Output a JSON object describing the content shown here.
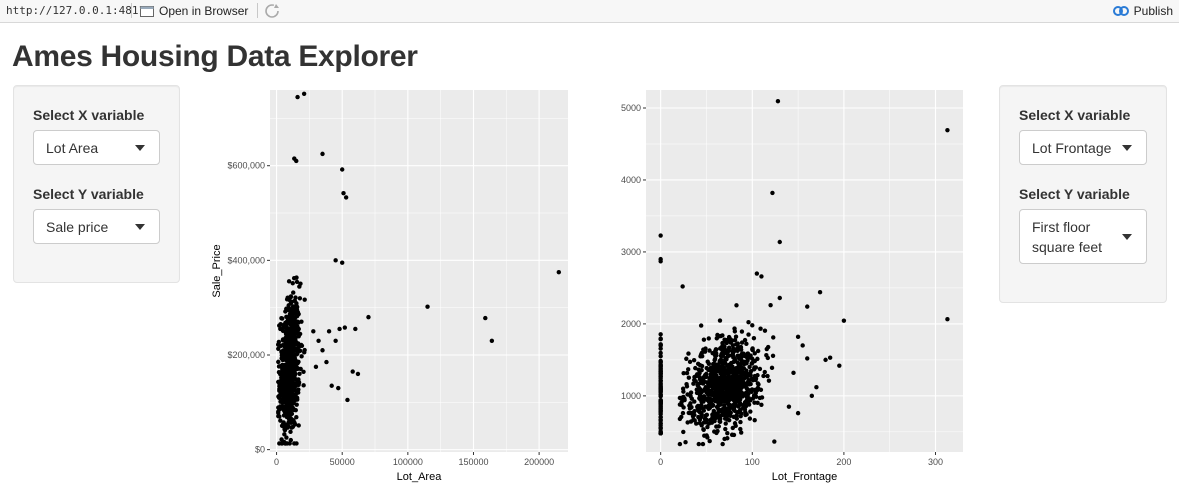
{
  "browser": {
    "url": "http://127.0.0.1:4811",
    "open_in_browser": "Open in Browser",
    "publish": "Publish"
  },
  "page": {
    "title": "Ames Housing Data Explorer"
  },
  "left_panel": {
    "x_label": "Select X variable",
    "x_value": "Lot Area",
    "y_label": "Select Y variable",
    "y_value": "Sale price"
  },
  "right_panel": {
    "x_label": "Select X variable",
    "x_value": "Lot Frontage",
    "y_label": "Select Y variable",
    "y_value": "First floor square feet"
  },
  "chart_data": [
    {
      "type": "scatter",
      "xlabel": "Lot_Area",
      "ylabel": "Sale_Price",
      "xlim": [
        -5000,
        222000
      ],
      "ylim": [
        -5000,
        760000
      ],
      "x_ticks": [
        0,
        50000,
        100000,
        150000,
        200000
      ],
      "x_tick_labels": [
        "0",
        "50000",
        "100000",
        "150000",
        "200000"
      ],
      "y_ticks": [
        0,
        200000,
        400000,
        600000
      ],
      "y_tick_labels": [
        "$0",
        "$200,000",
        "$400,000",
        "$600,000"
      ],
      "grid": true,
      "outliers": [
        [
          21000,
          752000
        ],
        [
          16000,
          745000
        ],
        [
          35000,
          625000
        ],
        [
          13500,
          615000
        ],
        [
          15000,
          610000
        ],
        [
          50000,
          592000
        ],
        [
          51000,
          542000
        ],
        [
          53000,
          533000
        ],
        [
          45000,
          400000
        ],
        [
          50000,
          395000
        ],
        [
          215000,
          375000
        ],
        [
          115000,
          302000
        ],
        [
          70000,
          280000
        ],
        [
          159000,
          278000
        ],
        [
          48000,
          255000
        ],
        [
          52000,
          258000
        ],
        [
          60000,
          255000
        ],
        [
          40000,
          250000
        ],
        [
          164000,
          230000
        ],
        [
          45000,
          230000
        ],
        [
          58000,
          165000
        ],
        [
          62000,
          160000
        ],
        [
          42000,
          135000
        ],
        [
          47000,
          130000
        ],
        [
          54000,
          105000
        ],
        [
          35000,
          210000
        ],
        [
          32000,
          230000
        ],
        [
          38000,
          185000
        ],
        [
          28000,
          250000
        ],
        [
          30000,
          175000
        ]
      ],
      "cluster": {
        "n": 700,
        "x_mean": 10000,
        "x_sd": 3800,
        "y_mean": 175000,
        "y_sd": 72000
      }
    },
    {
      "type": "scatter",
      "xlabel": "Lot_Frontage",
      "ylabel": "First_Flr_SF",
      "xlim": [
        -16,
        330
      ],
      "ylim": [
        220,
        5250
      ],
      "x_ticks": [
        0,
        100,
        200,
        300
      ],
      "x_tick_labels": [
        "0",
        "100",
        "200",
        "300"
      ],
      "y_ticks": [
        1000,
        2000,
        3000,
        4000,
        5000
      ],
      "y_tick_labels": [
        "1000",
        "2000",
        "3000",
        "4000",
        "5000"
      ],
      "grid": true,
      "outliers": [
        [
          128,
          5095
        ],
        [
          313,
          4692
        ],
        [
          122,
          3820
        ],
        [
          130,
          3138
        ],
        [
          0,
          3228
        ],
        [
          0,
          2900
        ],
        [
          313,
          2065
        ],
        [
          200,
          2045
        ],
        [
          174,
          2440
        ],
        [
          160,
          2240
        ],
        [
          195,
          1420
        ],
        [
          185,
          1530
        ],
        [
          180,
          1500
        ],
        [
          105,
          2700
        ],
        [
          110,
          2660
        ],
        [
          150,
          1820
        ],
        [
          155,
          1700
        ],
        [
          160,
          1520
        ],
        [
          24,
          2520
        ],
        [
          0,
          2870
        ],
        [
          130,
          2360
        ],
        [
          120,
          2260
        ],
        [
          150,
          760
        ],
        [
          140,
          850
        ],
        [
          165,
          1000
        ],
        [
          170,
          1120
        ],
        [
          145,
          1320
        ],
        [
          100,
          1980
        ]
      ],
      "cluster": {
        "n": 900,
        "x_mean": 70,
        "x_sd": 20,
        "y_mean": 1150,
        "y_sd": 300
      },
      "zero_column": {
        "n": 90,
        "y_mean": 1100,
        "y_sd": 380
      }
    }
  ]
}
